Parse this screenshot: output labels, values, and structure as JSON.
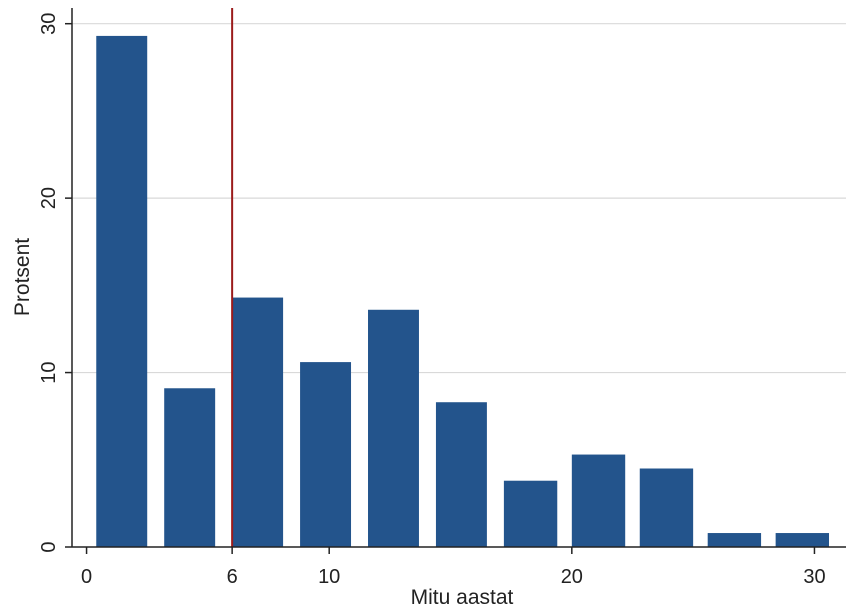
{
  "chart_data": {
    "type": "bar",
    "xlabel": "Mitu aastat",
    "ylabel": "Protsent",
    "xlim": [
      -0.6,
      31.3
    ],
    "ylim": [
      0,
      30.9
    ],
    "x_ticks": [
      0,
      6,
      10,
      20,
      30
    ],
    "y_ticks": [
      0,
      10,
      20,
      30
    ],
    "grid": true,
    "bin_width": 2.8,
    "bins": [
      {
        "x0": 0.4,
        "x1": 2.5,
        "value": 29.3
      },
      {
        "x0": 3.2,
        "x1": 5.3,
        "value": 9.1
      },
      {
        "x0": 6.0,
        "x1": 8.1,
        "value": 14.3
      },
      {
        "x0": 8.8,
        "x1": 10.9,
        "value": 10.6
      },
      {
        "x0": 11.6,
        "x1": 13.7,
        "value": 13.6
      },
      {
        "x0": 14.4,
        "x1": 16.5,
        "value": 8.3
      },
      {
        "x0": 17.2,
        "x1": 19.4,
        "value": 3.8
      },
      {
        "x0": 20.0,
        "x1": 22.2,
        "value": 5.3
      },
      {
        "x0": 22.8,
        "x1": 25.0,
        "value": 4.5
      },
      {
        "x0": 25.6,
        "x1": 27.8,
        "value": 0.8
      },
      {
        "x0": 28.4,
        "x1": 30.6,
        "value": 0.8
      }
    ],
    "reference_line": {
      "x": 6,
      "color": "#9b1b1b"
    },
    "bar_color": "#23548c"
  }
}
